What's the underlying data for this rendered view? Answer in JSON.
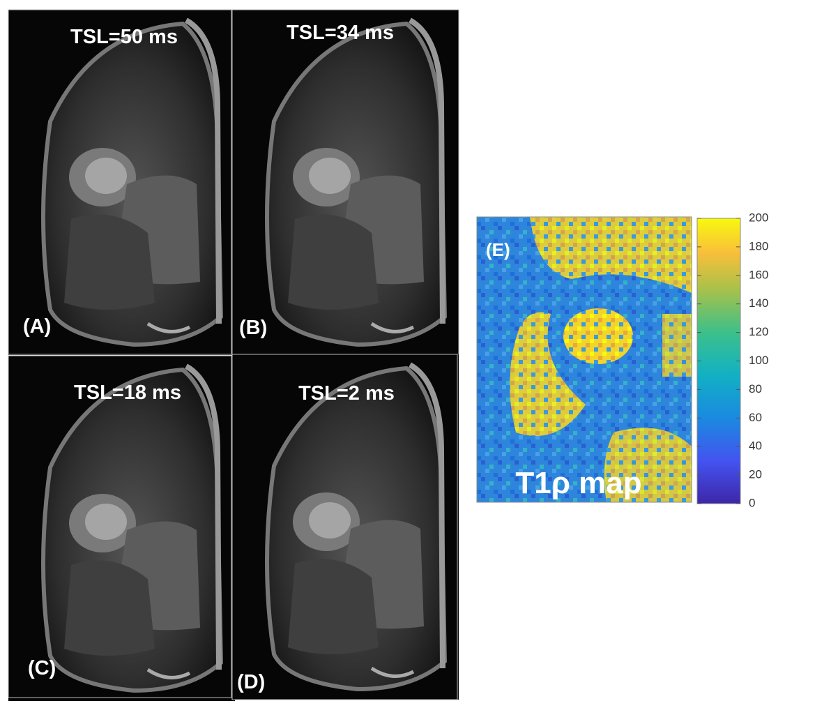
{
  "panels": [
    {
      "label": "(A)",
      "title": "TSL=50 ms"
    },
    {
      "label": "(B)",
      "title": "TSL=34 ms"
    },
    {
      "label": "(C)",
      "title": "TSL=18 ms"
    },
    {
      "label": "(D)",
      "title": "TSL=2 ms"
    }
  ],
  "map": {
    "label": "(E)",
    "title": "T1ρ map"
  },
  "colorbar": {
    "lim": [
      0,
      200
    ],
    "ticks": [
      0,
      20,
      40,
      60,
      80,
      100,
      120,
      140,
      160,
      180,
      200
    ]
  }
}
